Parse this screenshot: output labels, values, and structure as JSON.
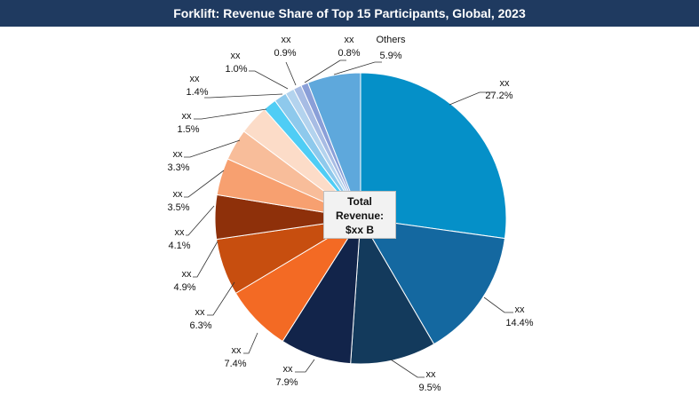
{
  "chart_data": {
    "type": "pie",
    "title": "Forklift: Revenue Share of Top 15 Participants, Global, 2023",
    "center_label": [
      "Total",
      "Revenue:",
      "$xx B"
    ],
    "series": [
      {
        "name": "xx",
        "value": 27.2,
        "label": "27.2%",
        "color": "#0590c8"
      },
      {
        "name": "xx",
        "value": 14.4,
        "label": "14.4%",
        "color": "#1468a0"
      },
      {
        "name": "xx",
        "value": 9.5,
        "label": "9.5%",
        "color": "#133a5c"
      },
      {
        "name": "xx",
        "value": 7.9,
        "label": "7.9%",
        "color": "#12244a"
      },
      {
        "name": "xx",
        "value": 7.4,
        "label": "7.4%",
        "color": "#f36a24"
      },
      {
        "name": "xx",
        "value": 6.3,
        "label": "6.3%",
        "color": "#c74e0f"
      },
      {
        "name": "xx",
        "value": 4.9,
        "label": "4.9%",
        "color": "#8e300a"
      },
      {
        "name": "xx",
        "value": 4.1,
        "label": "4.1%",
        "color": "#f7a070"
      },
      {
        "name": "xx",
        "value": 3.5,
        "label": "3.5%",
        "color": "#f8bd9a"
      },
      {
        "name": "xx",
        "value": 3.3,
        "label": "3.3%",
        "color": "#fcdcc8"
      },
      {
        "name": "xx",
        "value": 1.5,
        "label": "1.5%",
        "color": "#4fcdf5"
      },
      {
        "name": "xx",
        "value": 1.4,
        "label": "1.4%",
        "color": "#8ec9ec"
      },
      {
        "name": "xx",
        "value": 1.0,
        "label": "1.0%",
        "color": "#b3d3ee"
      },
      {
        "name": "xx",
        "value": 0.9,
        "label": "0.9%",
        "color": "#a7bce4"
      },
      {
        "name": "xx",
        "value": 0.8,
        "label": "0.8%",
        "color": "#8a9fd8"
      },
      {
        "name": "Others",
        "value": 5.9,
        "label": "5.9%",
        "color": "#5ea8dc"
      }
    ]
  }
}
